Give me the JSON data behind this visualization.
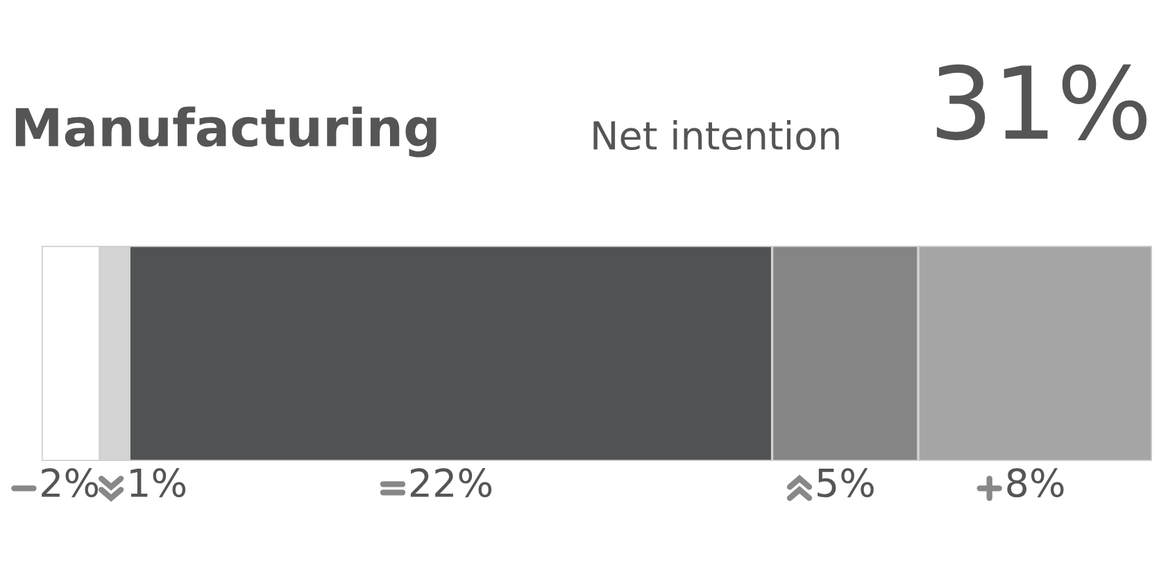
{
  "chart_data": {
    "type": "bar",
    "orientation": "horizontal",
    "stacked": true,
    "title": "Manufacturing",
    "subtitle": "Net intention",
    "annotations": [
      "31%"
    ],
    "categories": [
      null
    ],
    "series": [
      {
        "color": "#ffffff",
        "values": [
          2
        ],
        "value_labels": [
          "2%"
        ]
      },
      {
        "color": "#d4d4d4",
        "values": [
          1
        ],
        "value_labels": [
          "1%"
        ]
      },
      {
        "color": "#515254",
        "values": [
          22
        ],
        "value_labels": [
          "22%"
        ]
      },
      {
        "color": "#858585",
        "values": [
          5
        ],
        "value_labels": [
          "5%"
        ]
      },
      {
        "color": "#a5a5a5",
        "values": [
          8
        ],
        "value_labels": [
          "8%"
        ]
      }
    ]
  }
}
